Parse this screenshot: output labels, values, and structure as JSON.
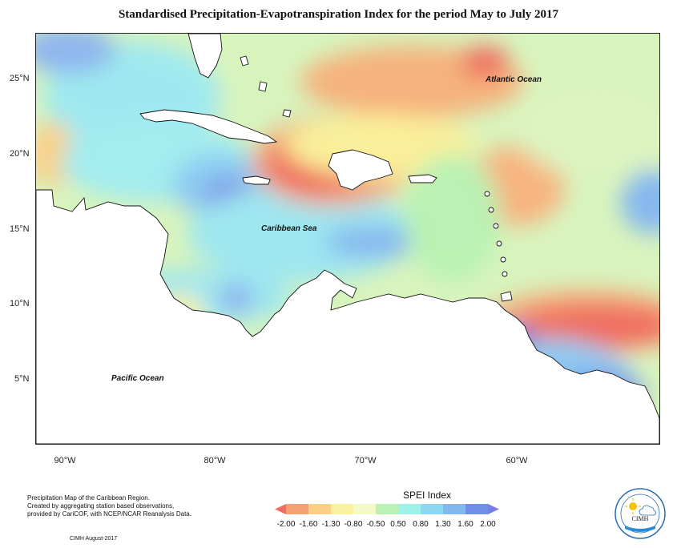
{
  "title": "Standardised Precipitation-Evapotranspiration Index for the period May to July 2017",
  "map": {
    "latitude_ticks": [
      "25°N",
      "20°N",
      "15°N",
      "10°N",
      "5°N"
    ],
    "longitude_ticks": [
      "90°W",
      "80°W",
      "70°W",
      "60°W"
    ],
    "place_labels": {
      "atlantic": "Atlantic Ocean",
      "caribbean": "Caribbean Sea",
      "pacific": "Pacific Ocean"
    }
  },
  "legend": {
    "title": "SPEI Index",
    "labels": [
      "-2.00",
      "-1.60",
      "-1.30",
      "-0.80",
      "-0.50",
      "0.50",
      "0.80",
      "1.30",
      "1.60",
      "2.00"
    ],
    "colors": [
      "#ef6d61",
      "#f5a176",
      "#fbcf85",
      "#faf1a0",
      "#f3fac6",
      "#b9f2b4",
      "#9ef2e9",
      "#8dd8f5",
      "#83b8ee",
      "#6f8fe6",
      "#7a7ee8"
    ]
  },
  "footer": {
    "description_line1": "Precipitation Map of the Caribbean Region.",
    "description_line2": "Created by aggregating station based observations,",
    "description_line3": "provided by CariCOF, with NCEP/NCAR Reanalysis Data.",
    "credit": "CIMH August-2017"
  },
  "logo": {
    "icon": "cimh-logo-icon",
    "text": "CIMH"
  }
}
